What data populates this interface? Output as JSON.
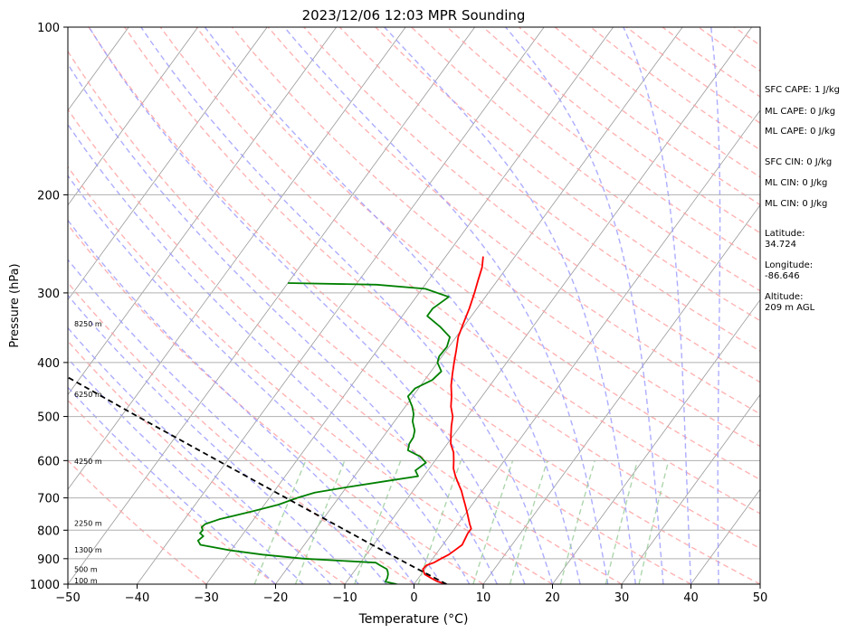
{
  "chart_data": {
    "type": "skew-t log-p sounding",
    "title": "2023/12/06 12:03 MPR Sounding",
    "xlabel": "Temperature (°C)",
    "ylabel": "Pressure (hPa)",
    "xlim": [
      -50,
      50
    ],
    "ylim": [
      1000,
      100
    ],
    "y_scale": "log",
    "x_ticks": [
      -50,
      -40,
      -30,
      -20,
      -10,
      0,
      10,
      20,
      30,
      40,
      50
    ],
    "x_tick_labels": [
      "−50",
      "−40",
      "−30",
      "−20",
      "−10",
      "0",
      "10",
      "20",
      "30",
      "40",
      "50"
    ],
    "y_ticks": [
      100,
      200,
      300,
      400,
      500,
      600,
      700,
      800,
      900,
      1000
    ],
    "y_tick_labels": [
      "100",
      "200",
      "300",
      "400",
      "500",
      "600",
      "700",
      "800",
      "900",
      "1000"
    ],
    "grid": "horizontal at pressure ticks",
    "colors": {
      "temperature": "#ff0000",
      "dewpoint": "#008000",
      "parcel": "#000000",
      "dry_adiabats": "#ff9999",
      "moist_adiabats": "#9999ff",
      "mixing_ratio": "#99cc99",
      "isotherms": "#999999"
    },
    "series": [
      {
        "role": "temperature",
        "points": [
          [
            1000,
            4.7
          ],
          [
            990,
            3.2
          ],
          [
            975,
            1.8
          ],
          [
            960,
            0.5
          ],
          [
            950,
            0.1
          ],
          [
            940,
            -0.3
          ],
          [
            925,
            -0.2
          ],
          [
            915,
            0.6
          ],
          [
            900,
            1.2
          ],
          [
            885,
            1.9
          ],
          [
            870,
            2.3
          ],
          [
            850,
            2.8
          ],
          [
            830,
            2.6
          ],
          [
            810,
            2.4
          ],
          [
            795,
            2.4
          ],
          [
            780,
            1.7
          ],
          [
            750,
            0.4
          ],
          [
            720,
            -1.0
          ],
          [
            700,
            -2.0
          ],
          [
            680,
            -3.0
          ],
          [
            660,
            -4.2
          ],
          [
            640,
            -5.4
          ],
          [
            620,
            -6.5
          ],
          [
            600,
            -7.3
          ],
          [
            580,
            -8.2
          ],
          [
            560,
            -9.5
          ],
          [
            540,
            -10.4
          ],
          [
            520,
            -11.3
          ],
          [
            500,
            -12.1
          ],
          [
            480,
            -13.4
          ],
          [
            460,
            -14.4
          ],
          [
            440,
            -15.6
          ],
          [
            420,
            -16.6
          ],
          [
            400,
            -17.6
          ],
          [
            380,
            -18.6
          ],
          [
            360,
            -19.7
          ],
          [
            340,
            -20.4
          ],
          [
            320,
            -21.1
          ],
          [
            300,
            -22.0
          ],
          [
            285,
            -22.8
          ],
          [
            270,
            -23.6
          ],
          [
            258,
            -24.6
          ]
        ]
      },
      {
        "role": "dewpoint",
        "points": [
          [
            1000,
            -2.5
          ],
          [
            990,
            -4.4
          ],
          [
            975,
            -4.5
          ],
          [
            960,
            -4.8
          ],
          [
            950,
            -5.1
          ],
          [
            940,
            -5.5
          ],
          [
            925,
            -6.9
          ],
          [
            915,
            -7.8
          ],
          [
            900,
            -18.6
          ],
          [
            885,
            -25.0
          ],
          [
            870,
            -30.0
          ],
          [
            850,
            -35.0
          ],
          [
            835,
            -35.8
          ],
          [
            820,
            -35.5
          ],
          [
            810,
            -36.3
          ],
          [
            800,
            -36.2
          ],
          [
            790,
            -36.7
          ],
          [
            780,
            -36.5
          ],
          [
            765,
            -35.0
          ],
          [
            740,
            -31.0
          ],
          [
            720,
            -28.0
          ],
          [
            700,
            -26.0
          ],
          [
            685,
            -24.0
          ],
          [
            670,
            -20.0
          ],
          [
            650,
            -14.0
          ],
          [
            640,
            -10.8
          ],
          [
            625,
            -11.8
          ],
          [
            605,
            -11.1
          ],
          [
            590,
            -12.6
          ],
          [
            575,
            -15.0
          ],
          [
            560,
            -15.5
          ],
          [
            545,
            -15.6
          ],
          [
            530,
            -16.1
          ],
          [
            510,
            -17.4
          ],
          [
            495,
            -18.0
          ],
          [
            480,
            -19.0
          ],
          [
            460,
            -20.7
          ],
          [
            445,
            -20.5
          ],
          [
            430,
            -18.9
          ],
          [
            415,
            -18.5
          ],
          [
            400,
            -20.0
          ],
          [
            390,
            -20.4
          ],
          [
            375,
            -20.3
          ],
          [
            360,
            -20.9
          ],
          [
            345,
            -23.4
          ],
          [
            330,
            -26.4
          ],
          [
            320,
            -26.4
          ],
          [
            305,
            -25.3
          ],
          [
            295,
            -29.5
          ],
          [
            290,
            -37.0
          ],
          [
            288,
            -50.0
          ]
        ]
      },
      {
        "role": "parcel",
        "points": [
          [
            1000,
            4.7
          ],
          [
            925,
            -2.5
          ],
          [
            850,
            -10.2
          ],
          [
            800,
            -15.6
          ],
          [
            700,
            -27.6
          ],
          [
            600,
            -41.4
          ],
          [
            500,
            -57.6
          ],
          [
            400,
            -77.2
          ],
          [
            300,
            -102.1
          ],
          [
            270,
            -111.0
          ]
        ]
      }
    ],
    "height_labels": [
      "100 m",
      "500 m",
      "1300 m",
      "2250 m",
      "4250 m",
      "6250 m",
      "8250 m"
    ],
    "height_pressures": [
      989,
      944,
      871,
      780,
      604,
      458,
      342
    ]
  },
  "info": {
    "sfc_cape": "SFC CAPE: 1 J/kg",
    "ml_cape_1": "ML CAPE: 0 J/kg",
    "ml_cape_2": "ML CAPE: 0 J/kg",
    "sfc_cin": "SFC CIN: 0 J/kg",
    "ml_cin_1": "ML CIN: 0 J/kg",
    "ml_cin_2": "ML CIN: 0 J/kg",
    "latitude_label": "Latitude:",
    "latitude_value": "34.724",
    "longitude_label": "Longitude:",
    "longitude_value": "-86.646",
    "altitude_label": "Altitude:",
    "altitude_value": "209 m AGL"
  }
}
